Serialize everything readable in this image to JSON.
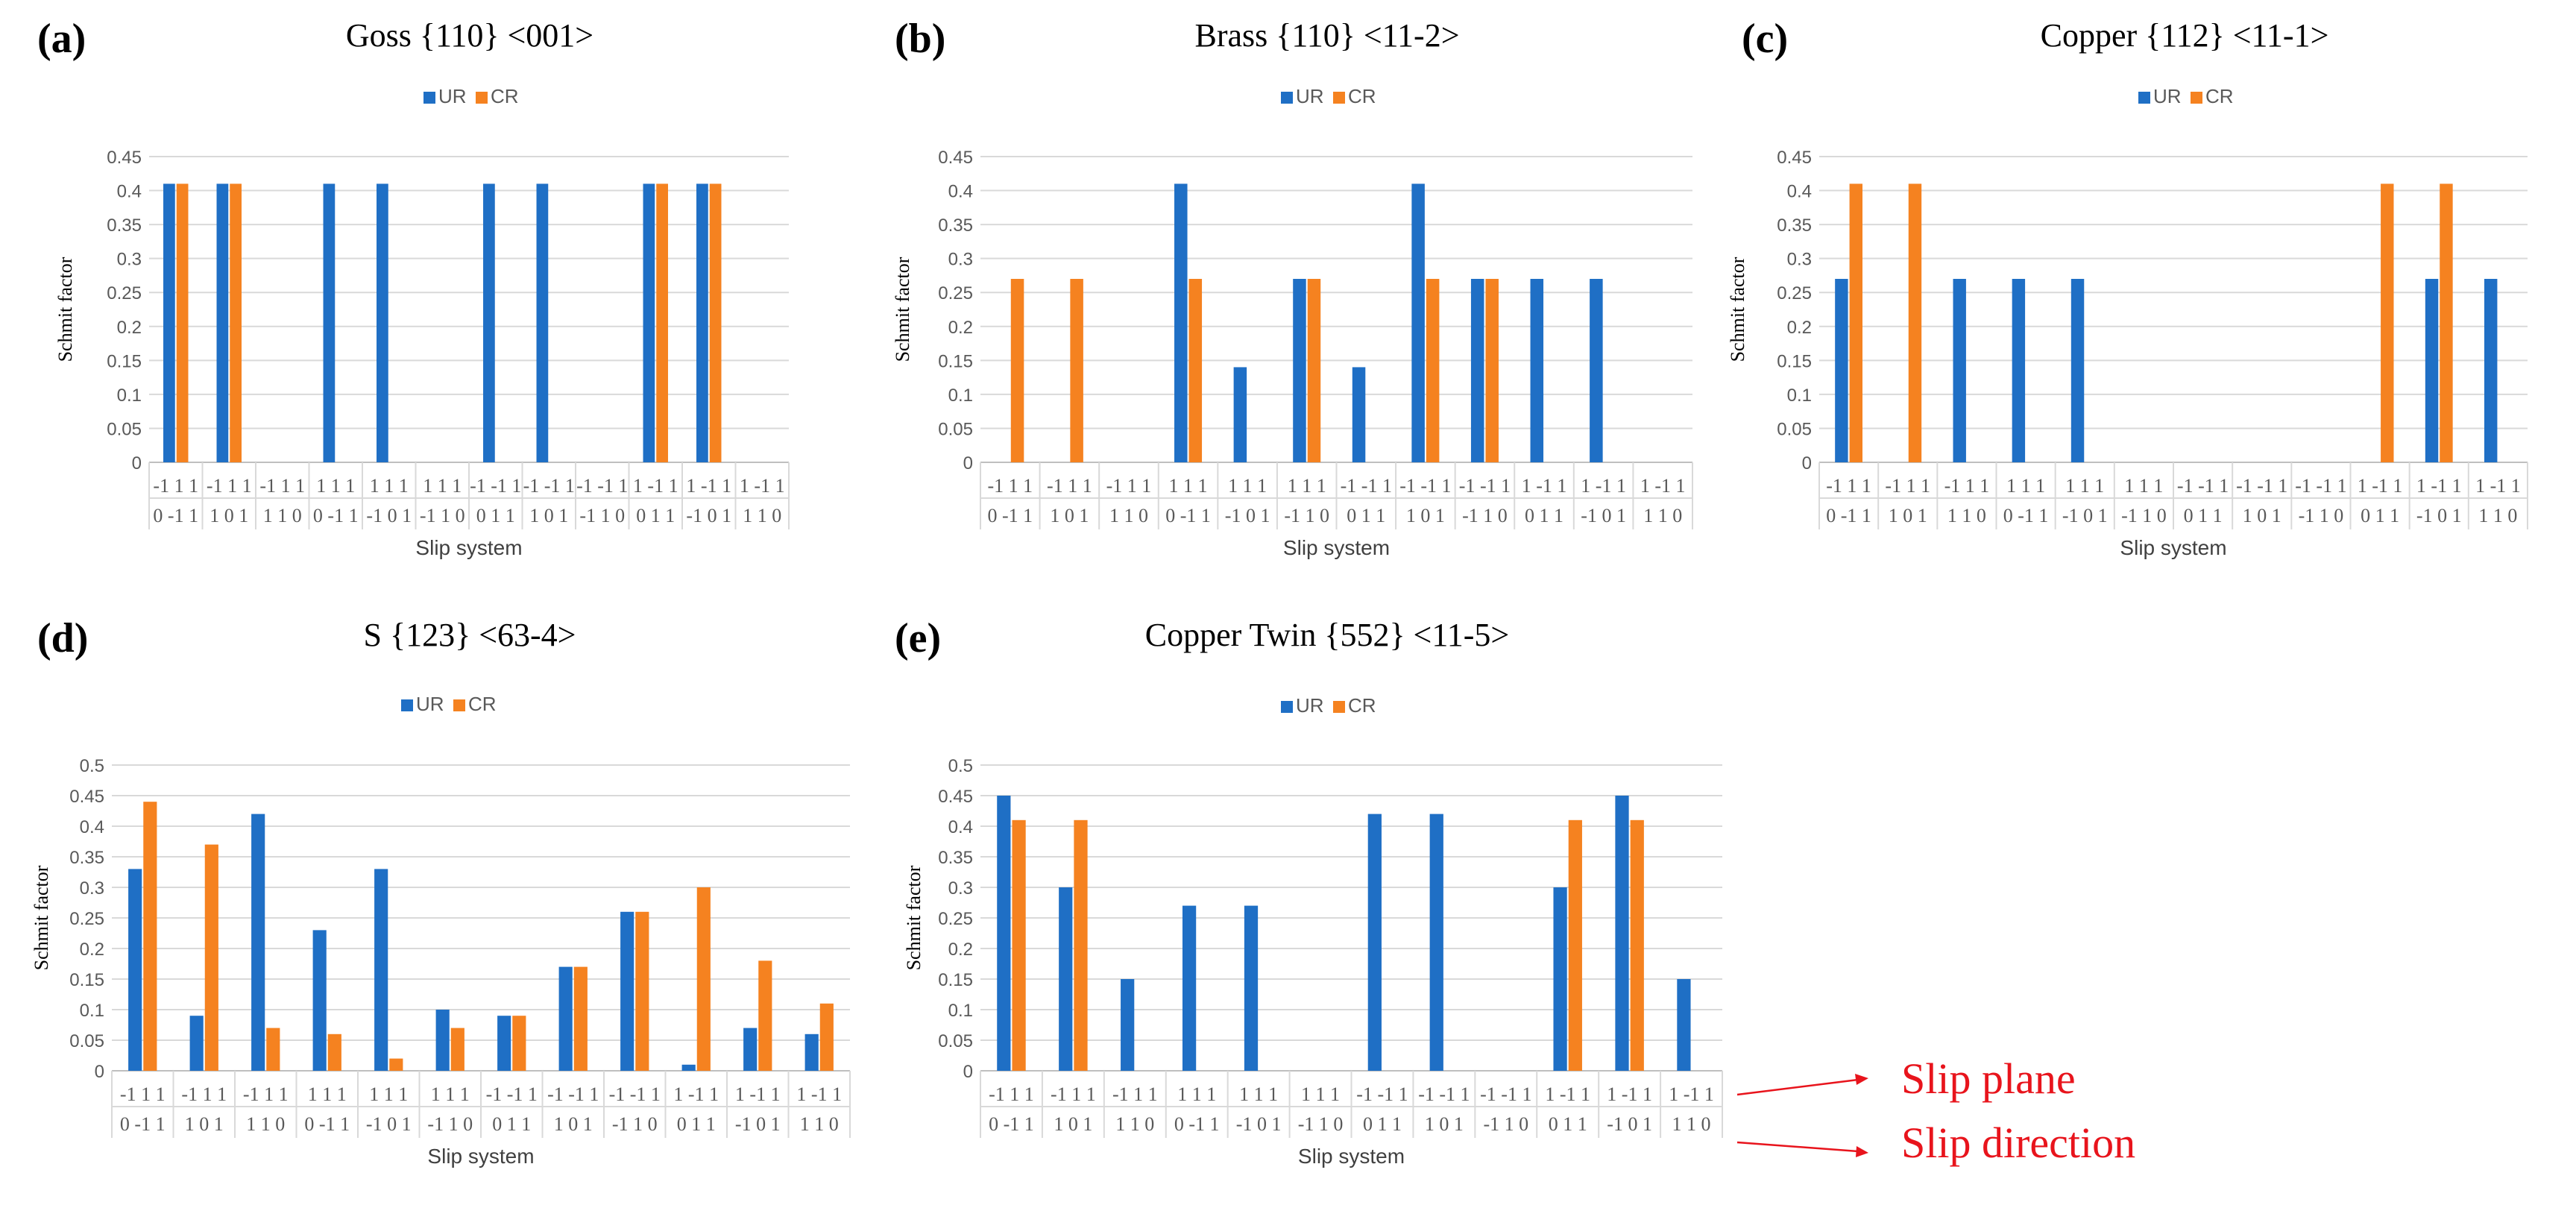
{
  "figure": {
    "slip_plane_label": "Slip plane",
    "slip_direction_label": "Slip direction",
    "annotation_color": "#e8141c"
  },
  "colors": {
    "UR": "#1f6fc5",
    "CR": "#f58220",
    "grid": "#d9d9d9",
    "axis": "#bfbfbf",
    "text": "#595959"
  },
  "chart_data": [
    {
      "panel": "(a)",
      "type": "bar",
      "title": "Goss {110} <001>",
      "xlabel": "Slip system",
      "ylabel": "Schmit factor",
      "ylim": [
        0,
        0.45
      ],
      "yticks": [
        "0",
        "0.05",
        "0.1",
        "0.15",
        "0.2",
        "0.25",
        "0.3",
        "0.35",
        "0.4",
        "0.45"
      ],
      "categories_plane": [
        "-1 1 1",
        "-1 1 1",
        "-1 1 1",
        "1 1 1",
        "1 1 1",
        "1 1 1",
        "-1 -1 1",
        "-1 -1 1",
        "-1 -1 1",
        "1 -1 1",
        "1 -1 1",
        "1 -1 1"
      ],
      "categories_direction": [
        "0 -1 1",
        "1 0 1",
        "1 1 0",
        "0 -1 1",
        "-1 0 1",
        "-1 1 0",
        "0 1 1",
        "1 0 1",
        "-1 1 0",
        "0 1 1",
        "-1 0 1",
        "1 1 0"
      ],
      "series": [
        {
          "name": "UR",
          "values": [
            0.41,
            0.41,
            0,
            0.41,
            0.41,
            0,
            0.41,
            0.41,
            0,
            0.41,
            0.41,
            0
          ]
        },
        {
          "name": "CR",
          "values": [
            0.41,
            0.41,
            0,
            0,
            0,
            0,
            0,
            0,
            0,
            0.41,
            0.41,
            0
          ]
        }
      ]
    },
    {
      "panel": "(b)",
      "type": "bar",
      "title": "Brass {110} <11-2>",
      "xlabel": "Slip system",
      "ylabel": "Schmit factor",
      "ylim": [
        0,
        0.45
      ],
      "yticks": [
        "0",
        "0.05",
        "0.1",
        "0.15",
        "0.2",
        "0.25",
        "0.3",
        "0.35",
        "0.4",
        "0.45"
      ],
      "categories_plane": [
        "-1 1 1",
        "-1 1 1",
        "-1 1 1",
        "1 1 1",
        "1 1 1",
        "1 1 1",
        "-1 -1 1",
        "-1 -1 1",
        "-1 -1 1",
        "1 -1 1",
        "1 -1 1",
        "1 -1 1"
      ],
      "categories_direction": [
        "0 -1 1",
        "1 0 1",
        "1 1 0",
        "0 -1 1",
        "-1 0 1",
        "-1 1 0",
        "0 1 1",
        "1 0 1",
        "-1 1 0",
        "0 1 1",
        "-1 0 1",
        "1 1 0"
      ],
      "series": [
        {
          "name": "UR",
          "values": [
            0,
            0,
            0,
            0.41,
            0.14,
            0.27,
            0.14,
            0.41,
            0.27,
            0.27,
            0.27,
            0
          ]
        },
        {
          "name": "CR",
          "values": [
            0.27,
            0.27,
            0,
            0.27,
            0,
            0.27,
            0,
            0.27,
            0.27,
            0,
            0,
            0
          ]
        }
      ]
    },
    {
      "panel": "(c)",
      "type": "bar",
      "title": "Copper {112} <11-1>",
      "xlabel": "Slip system",
      "ylabel": "Schmit factor",
      "ylim": [
        0,
        0.45
      ],
      "yticks": [
        "0",
        "0.05",
        "0.1",
        "0.15",
        "0.2",
        "0.25",
        "0.3",
        "0.35",
        "0.4",
        "0.45"
      ],
      "categories_plane": [
        "-1 1 1",
        "-1 1 1",
        "-1 1 1",
        "1 1 1",
        "1 1 1",
        "1 1 1",
        "-1 -1 1",
        "-1 -1 1",
        "-1 -1 1",
        "1 -1 1",
        "1 -1 1",
        "1 -1 1"
      ],
      "categories_direction": [
        "0 -1 1",
        "1 0 1",
        "1 1 0",
        "0 -1 1",
        "-1 0 1",
        "-1 1 0",
        "0 1 1",
        "1 0 1",
        "-1 1 0",
        "0 1 1",
        "-1 0 1",
        "1 1 0"
      ],
      "series": [
        {
          "name": "UR",
          "values": [
            0.27,
            0,
            0.27,
            0.27,
            0.27,
            0,
            0,
            0,
            0,
            0,
            0.27,
            0.27
          ]
        },
        {
          "name": "CR",
          "values": [
            0.41,
            0.41,
            0,
            0,
            0,
            0,
            0,
            0,
            0,
            0.41,
            0.41,
            0
          ]
        }
      ]
    },
    {
      "panel": "(d)",
      "type": "bar",
      "title": "S {123} <63-4>",
      "xlabel": "Slip system",
      "ylabel": "Schmit factor",
      "ylim": [
        0,
        0.5
      ],
      "yticks": [
        "0",
        "0.05",
        "0.1",
        "0.15",
        "0.2",
        "0.25",
        "0.3",
        "0.35",
        "0.4",
        "0.45",
        "0.5"
      ],
      "categories_plane": [
        "-1 1 1",
        "-1 1 1",
        "-1 1 1",
        "1 1 1",
        "1 1 1",
        "1 1 1",
        "-1 -1 1",
        "-1 -1 1",
        "-1 -1 1",
        "1 -1 1",
        "1 -1 1",
        "1 -1 1"
      ],
      "categories_direction": [
        "0 -1 1",
        "1 0 1",
        "1 1 0",
        "0 -1 1",
        "-1 0 1",
        "-1 1 0",
        "0 1 1",
        "1 0 1",
        "-1 1 0",
        "0 1 1",
        "-1 0 1",
        "1 1 0"
      ],
      "series": [
        {
          "name": "UR",
          "values": [
            0.33,
            0.09,
            0.42,
            0.23,
            0.33,
            0.1,
            0.09,
            0.17,
            0.26,
            0.01,
            0.07,
            0.06
          ]
        },
        {
          "name": "CR",
          "values": [
            0.44,
            0.37,
            0.07,
            0.06,
            0.02,
            0.07,
            0.09,
            0.17,
            0.26,
            0.3,
            0.18,
            0.11
          ]
        }
      ]
    },
    {
      "panel": "(e)",
      "type": "bar",
      "title": "Copper Twin {552} <11-5>",
      "xlabel": "Slip system",
      "ylabel": "Schmit factor",
      "ylim": [
        0,
        0.5
      ],
      "yticks": [
        "0",
        "0.05",
        "0.1",
        "0.15",
        "0.2",
        "0.25",
        "0.3",
        "0.35",
        "0.4",
        "0.45",
        "0.5"
      ],
      "categories_plane": [
        "-1 1 1",
        "-1 1 1",
        "-1 1 1",
        "1 1 1",
        "1 1 1",
        "1 1 1",
        "-1 -1 1",
        "-1 -1 1",
        "-1 -1 1",
        "1 -1 1",
        "1 -1 1",
        "1 -1 1"
      ],
      "categories_direction": [
        "0 -1 1",
        "1 0 1",
        "1 1 0",
        "0 -1 1",
        "-1 0 1",
        "-1 1 0",
        "0 1 1",
        "1 0 1",
        "-1 1 0",
        "0 1 1",
        "-1 0 1",
        "1 1 0"
      ],
      "series": [
        {
          "name": "UR",
          "values": [
            0.45,
            0.3,
            0.15,
            0.27,
            0.27,
            0,
            0.42,
            0.42,
            0,
            0.3,
            0.45,
            0.15
          ]
        },
        {
          "name": "CR",
          "values": [
            0.41,
            0.41,
            0,
            0,
            0,
            0,
            0,
            0,
            0,
            0.41,
            0.41,
            0
          ]
        }
      ]
    }
  ]
}
